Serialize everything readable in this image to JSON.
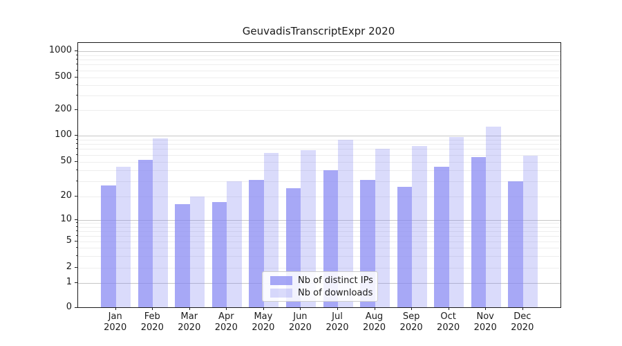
{
  "figure": {
    "background_color": "#ffffff",
    "text_color": "#1a1a1a",
    "grid_major_color": "#c6c6c6",
    "grid_minor_color": "#ededed"
  },
  "chart_data": {
    "type": "bar",
    "title": "GeuvadisTranscriptExpr 2020",
    "xlabel": "",
    "ylabel": "",
    "categories": [
      "Jan 2020",
      "Feb 2020",
      "Mar 2020",
      "Apr 2020",
      "May 2020",
      "Jun 2020",
      "Jul 2020",
      "Aug 2020",
      "Sep 2020",
      "Oct 2020",
      "Nov 2020",
      "Dec 2020"
    ],
    "series": [
      {
        "name": "Nb of distinct IPs",
        "color": "rgba(133,135,243,0.72)",
        "values": [
          27,
          52,
          16,
          17,
          31,
          25,
          40,
          31,
          26,
          44,
          57,
          30
        ]
      },
      {
        "name": "Nb of downloads",
        "color": "rgba(133,135,243,0.30)",
        "values": [
          44,
          94,
          20,
          30,
          63,
          68,
          90,
          70,
          76,
          97,
          129,
          59
        ]
      }
    ],
    "y_scale": "symlog",
    "y_ticks": [
      0,
      1,
      2,
      5,
      10,
      20,
      50,
      100,
      200,
      500,
      1000
    ],
    "ylim": [
      0,
      1300
    ],
    "grid": true,
    "legend": {
      "position": "lower center",
      "items": [
        "Nb of distinct IPs",
        "Nb of downloads"
      ]
    }
  }
}
